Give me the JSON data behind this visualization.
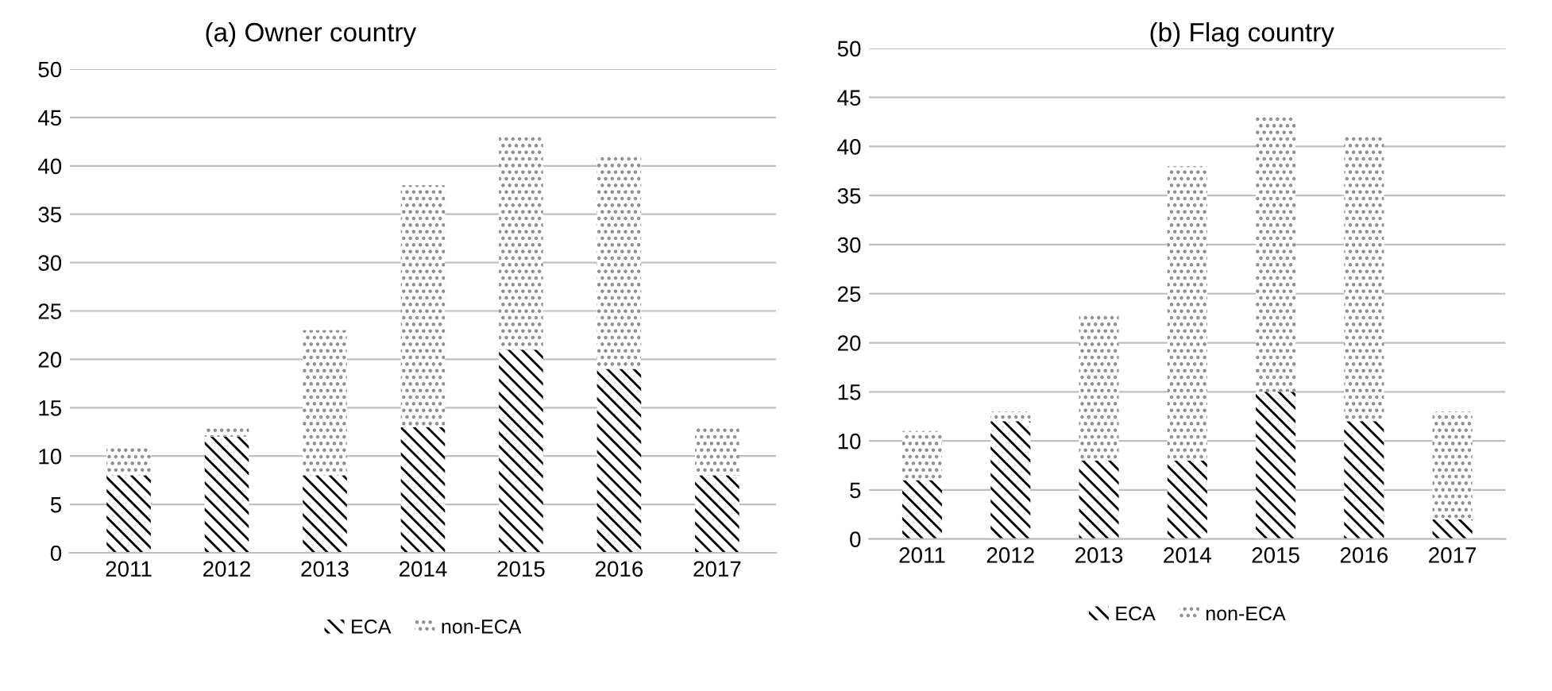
{
  "chart_data": [
    {
      "type": "bar",
      "title": "(a) Owner country",
      "stacked": true,
      "categories": [
        "2011",
        "2012",
        "2013",
        "2014",
        "2015",
        "2016",
        "2017"
      ],
      "series": [
        {
          "name": "ECA",
          "color": "#000000",
          "values": [
            8,
            12,
            8,
            13,
            21,
            19,
            8
          ]
        },
        {
          "name": "non-ECA",
          "color": "#8c8c8c",
          "values": [
            3,
            1,
            15,
            25,
            22,
            22,
            5
          ]
        }
      ],
      "ylim": [
        0,
        50
      ],
      "yticks": [
        0,
        5,
        10,
        15,
        20,
        25,
        30,
        35,
        40,
        45,
        50
      ],
      "grid": "y",
      "legend": "bottom"
    },
    {
      "type": "bar",
      "title": "(b) Flag country",
      "stacked": true,
      "categories": [
        "2011",
        "2012",
        "2013",
        "2014",
        "2015",
        "2016",
        "2017"
      ],
      "series": [
        {
          "name": "ECA",
          "color": "#000000",
          "values": [
            6,
            12,
            8,
            8,
            15,
            12,
            2
          ]
        },
        {
          "name": "non-ECA",
          "color": "#8c8c8c",
          "values": [
            5,
            1,
            15,
            30,
            28,
            29,
            11
          ]
        }
      ],
      "ylim": [
        0,
        50
      ],
      "yticks": [
        0,
        5,
        10,
        15,
        20,
        25,
        30,
        35,
        40,
        45,
        50
      ],
      "grid": "y",
      "legend": "bottom"
    }
  ]
}
